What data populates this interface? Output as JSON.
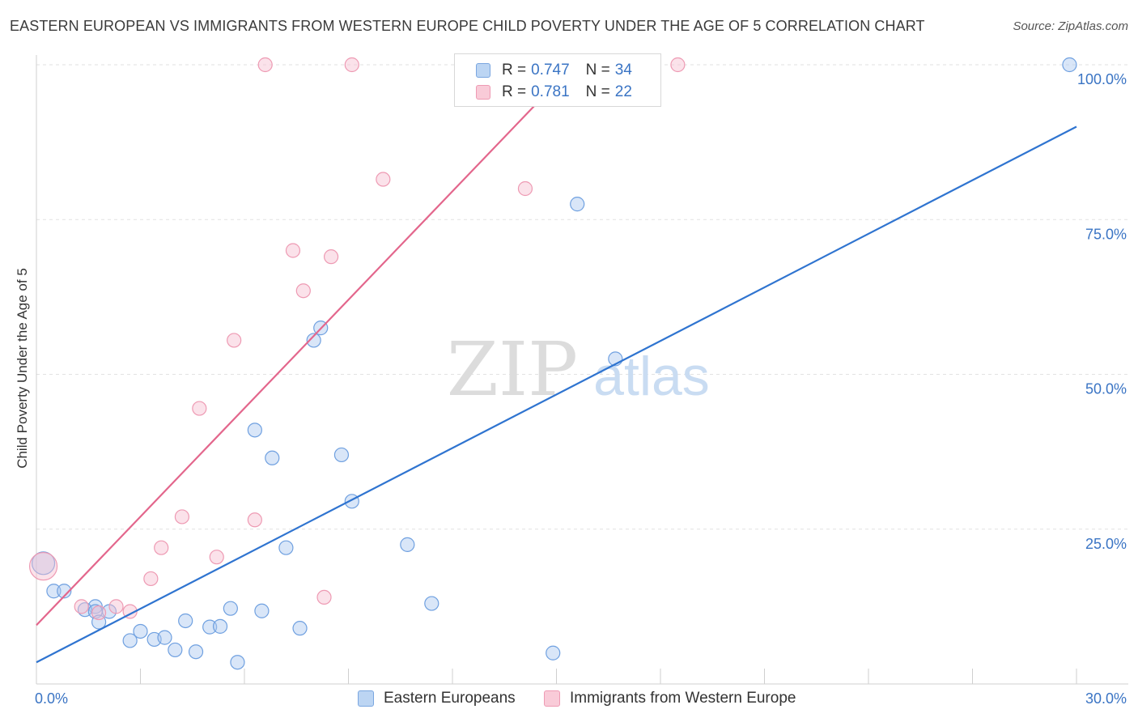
{
  "title": "EASTERN EUROPEAN VS IMMIGRANTS FROM WESTERN EUROPE CHILD POVERTY UNDER THE AGE OF 5 CORRELATION CHART",
  "source": "Source: ZipAtlas.com",
  "watermark": {
    "zip": "ZIP",
    "atlas": "atlas"
  },
  "legend": {
    "r_label": "R =",
    "n_label": "N =",
    "rows": [
      {
        "r": "0.747",
        "n": "34"
      },
      {
        "r": "0.781",
        "n": "22"
      }
    ]
  },
  "chart_data": {
    "type": "scatter",
    "title": "EASTERN EUROPEAN VS IMMIGRANTS FROM WESTERN EUROPE CHILD POVERTY UNDER THE AGE OF 5 CORRELATION CHART",
    "xlabel": "",
    "ylabel": "Child Poverty Under the Age of 5",
    "xlim": [
      0,
      30
    ],
    "ylim": [
      0,
      100
    ],
    "x_tick_labels": [
      "0.0%",
      "30.0%"
    ],
    "y_tick_labels": [
      "100.0%",
      "75.0%",
      "50.0%",
      "25.0%"
    ],
    "y_ticks": [
      100,
      75,
      50,
      25
    ],
    "grid": true,
    "legend_position": "top-center",
    "series": [
      {
        "name": "Eastern Europeans",
        "color": "#6fa0e0",
        "line_color": "#2f74d0",
        "trend": [
          [
            0,
            3.5
          ],
          [
            30,
            90
          ]
        ],
        "points": [
          [
            0.2,
            19.5
          ],
          [
            0.5,
            15
          ],
          [
            0.8,
            15
          ],
          [
            1.7,
            12.5
          ],
          [
            1.4,
            12
          ],
          [
            1.7,
            11.7
          ],
          [
            1.8,
            10
          ],
          [
            2.1,
            11.7
          ],
          [
            2.7,
            7
          ],
          [
            3.0,
            8.5
          ],
          [
            3.4,
            7.2
          ],
          [
            3.7,
            7.5
          ],
          [
            4.0,
            5.5
          ],
          [
            4.3,
            10.2
          ],
          [
            4.6,
            5.2
          ],
          [
            5.0,
            9.2
          ],
          [
            5.3,
            9.3
          ],
          [
            5.6,
            12.2
          ],
          [
            5.8,
            3.5
          ],
          [
            6.5,
            11.8
          ],
          [
            6.3,
            41
          ],
          [
            6.8,
            36.5
          ],
          [
            7.2,
            22
          ],
          [
            7.6,
            9
          ],
          [
            8.0,
            55.5
          ],
          [
            8.2,
            57.5
          ],
          [
            8.8,
            37
          ],
          [
            9.1,
            29.5
          ],
          [
            10.7,
            22.5
          ],
          [
            11.4,
            13
          ],
          [
            14.9,
            5
          ],
          [
            15.6,
            77.5
          ],
          [
            16.7,
            52.5
          ],
          [
            29.8,
            100
          ]
        ]
      },
      {
        "name": "Immigrants from Western Europe",
        "color": "#f19ab5",
        "line_color": "#e3668c",
        "trend": [
          [
            0,
            9.5
          ],
          [
            15.5,
            100
          ]
        ],
        "points": [
          [
            0.2,
            19
          ],
          [
            1.3,
            12.5
          ],
          [
            1.8,
            11.5
          ],
          [
            2.3,
            12.5
          ],
          [
            2.7,
            11.7
          ],
          [
            3.3,
            17
          ],
          [
            3.6,
            22
          ],
          [
            4.2,
            27
          ],
          [
            4.7,
            44.5
          ],
          [
            5.2,
            20.5
          ],
          [
            5.7,
            55.5
          ],
          [
            6.3,
            26.5
          ],
          [
            6.6,
            100
          ],
          [
            7.4,
            70
          ],
          [
            7.7,
            63.5
          ],
          [
            8.3,
            14
          ],
          [
            8.5,
            69
          ],
          [
            9.1,
            100
          ],
          [
            10.0,
            81.5
          ],
          [
            14.1,
            80
          ],
          [
            15.5,
            100
          ],
          [
            18.5,
            100
          ]
        ]
      }
    ]
  }
}
